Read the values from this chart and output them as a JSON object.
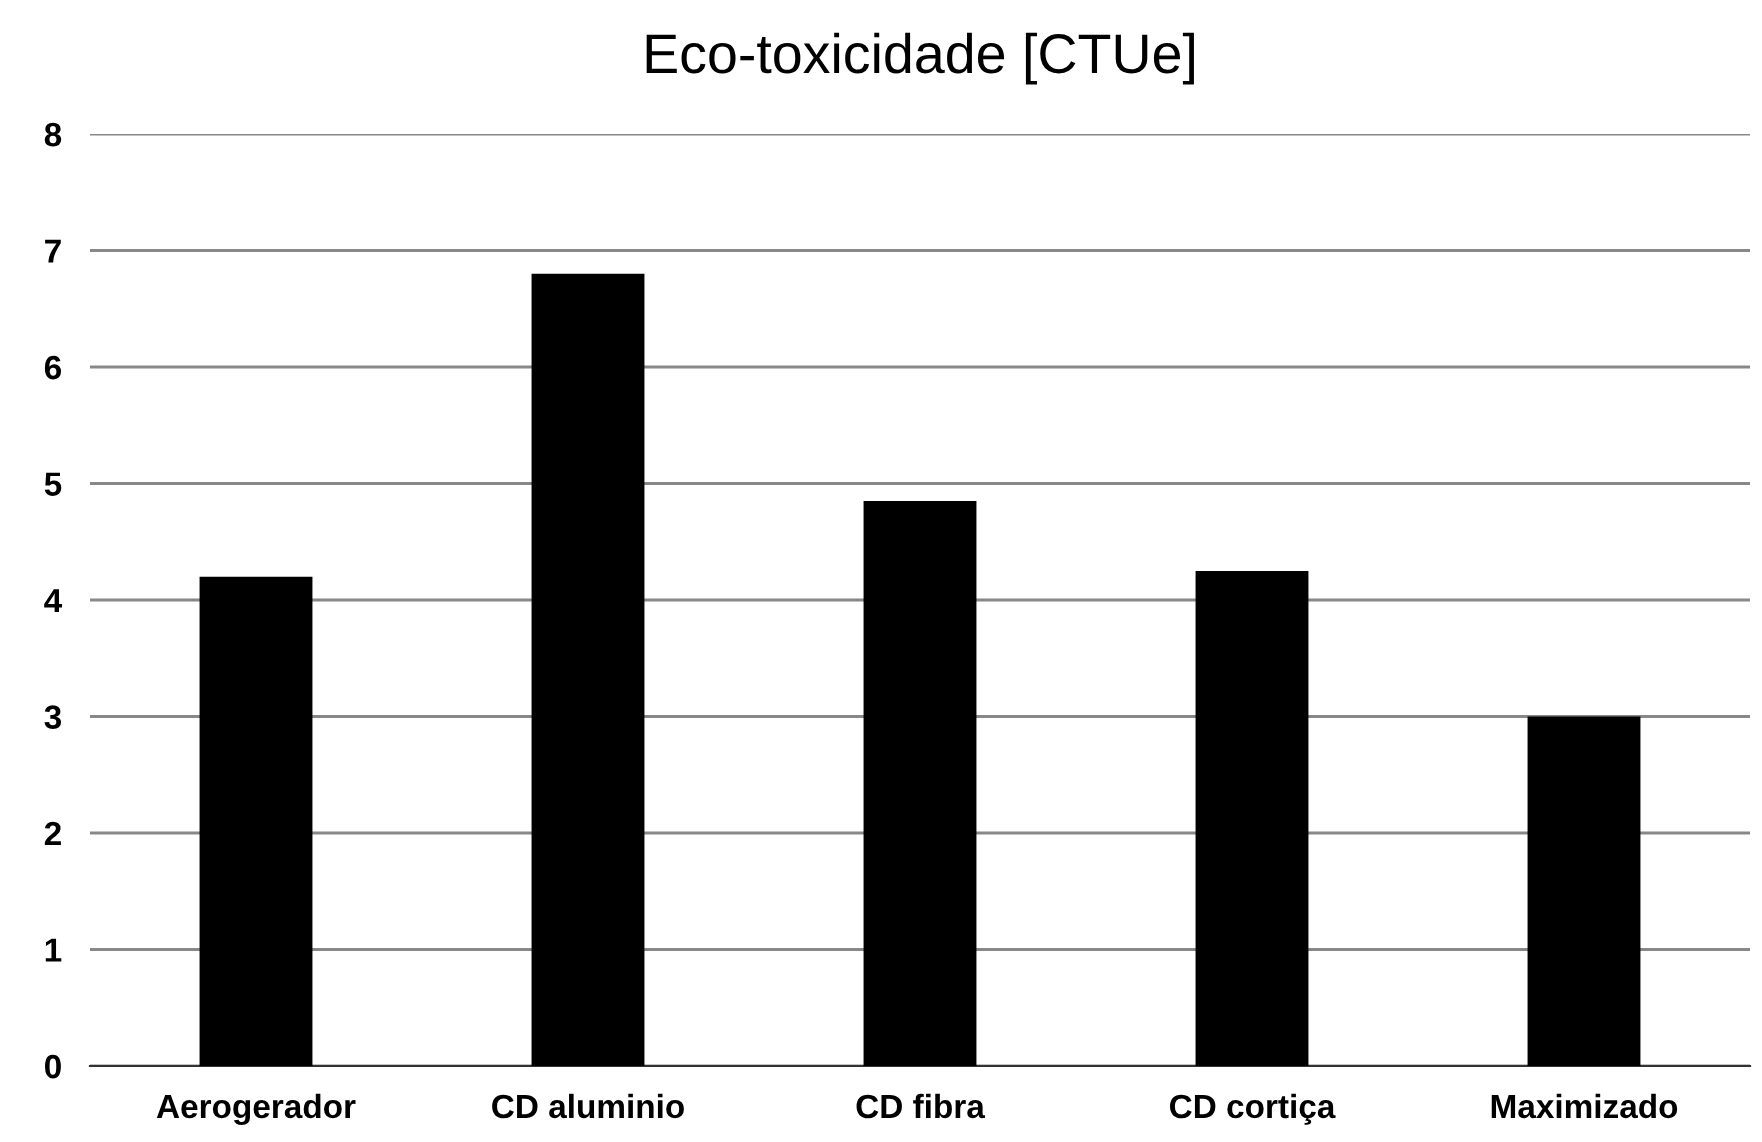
{
  "chart_data": {
    "type": "bar",
    "title": "Eco-toxicidade [CTUe]",
    "categories": [
      "Aerogerador",
      "CD aluminio",
      "CD fibra",
      "CD cortiça",
      "Maximizado"
    ],
    "values": [
      4.2,
      6.8,
      4.85,
      4.25,
      3.0
    ],
    "color": "#000000",
    "ylim": [
      0,
      8
    ],
    "yticks": [
      0,
      1,
      2,
      3,
      4,
      5,
      6,
      7,
      8
    ],
    "grid": "y"
  }
}
